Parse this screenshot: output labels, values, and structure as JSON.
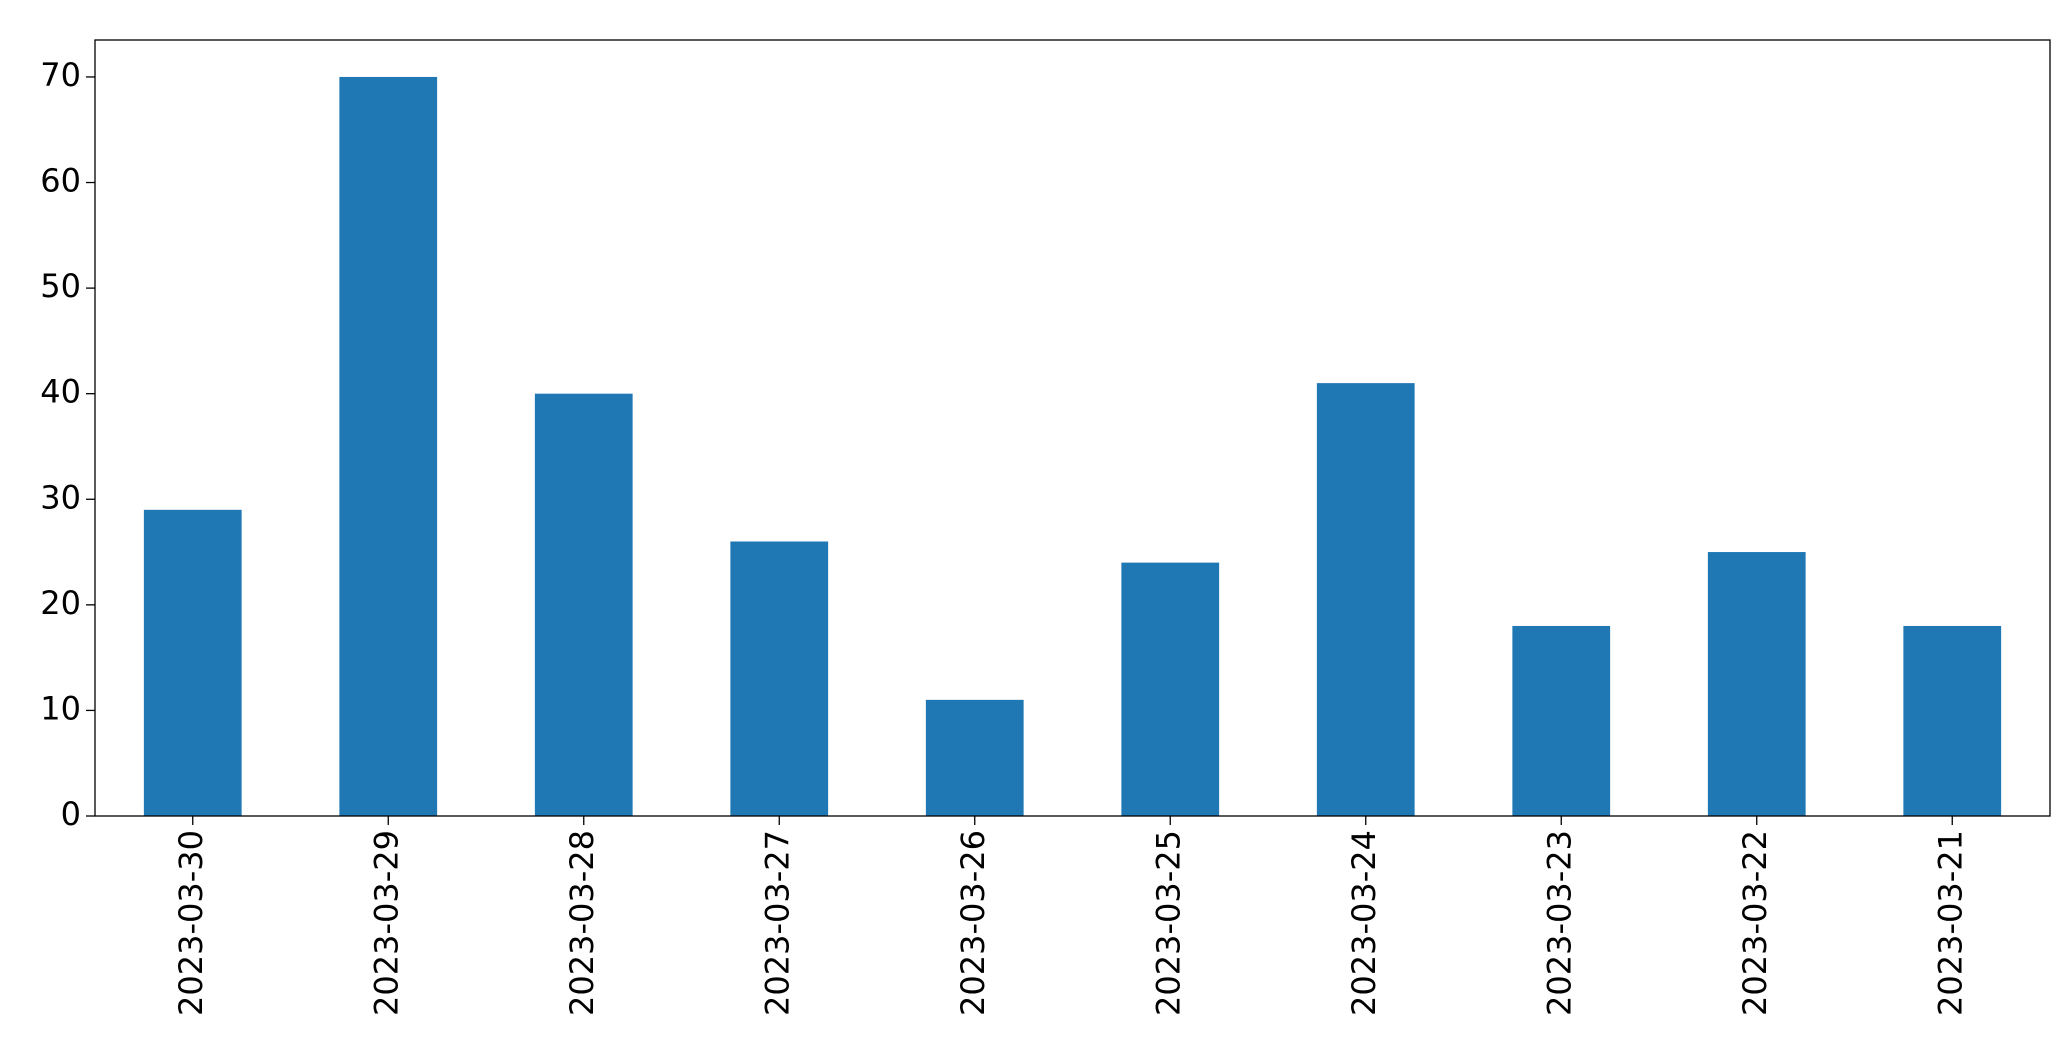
{
  "chart_data": {
    "type": "bar",
    "categories": [
      "2023-03-30",
      "2023-03-29",
      "2023-03-28",
      "2023-03-27",
      "2023-03-26",
      "2023-03-25",
      "2023-03-24",
      "2023-03-23",
      "2023-03-22",
      "2023-03-21"
    ],
    "values": [
      29,
      70,
      40,
      26,
      11,
      24,
      41,
      18,
      25,
      18
    ],
    "color": "#1f77b4",
    "ylim": [
      0,
      73.5
    ],
    "yticks": [
      0,
      10,
      20,
      30,
      40,
      50,
      60,
      70
    ],
    "grid": false
  }
}
